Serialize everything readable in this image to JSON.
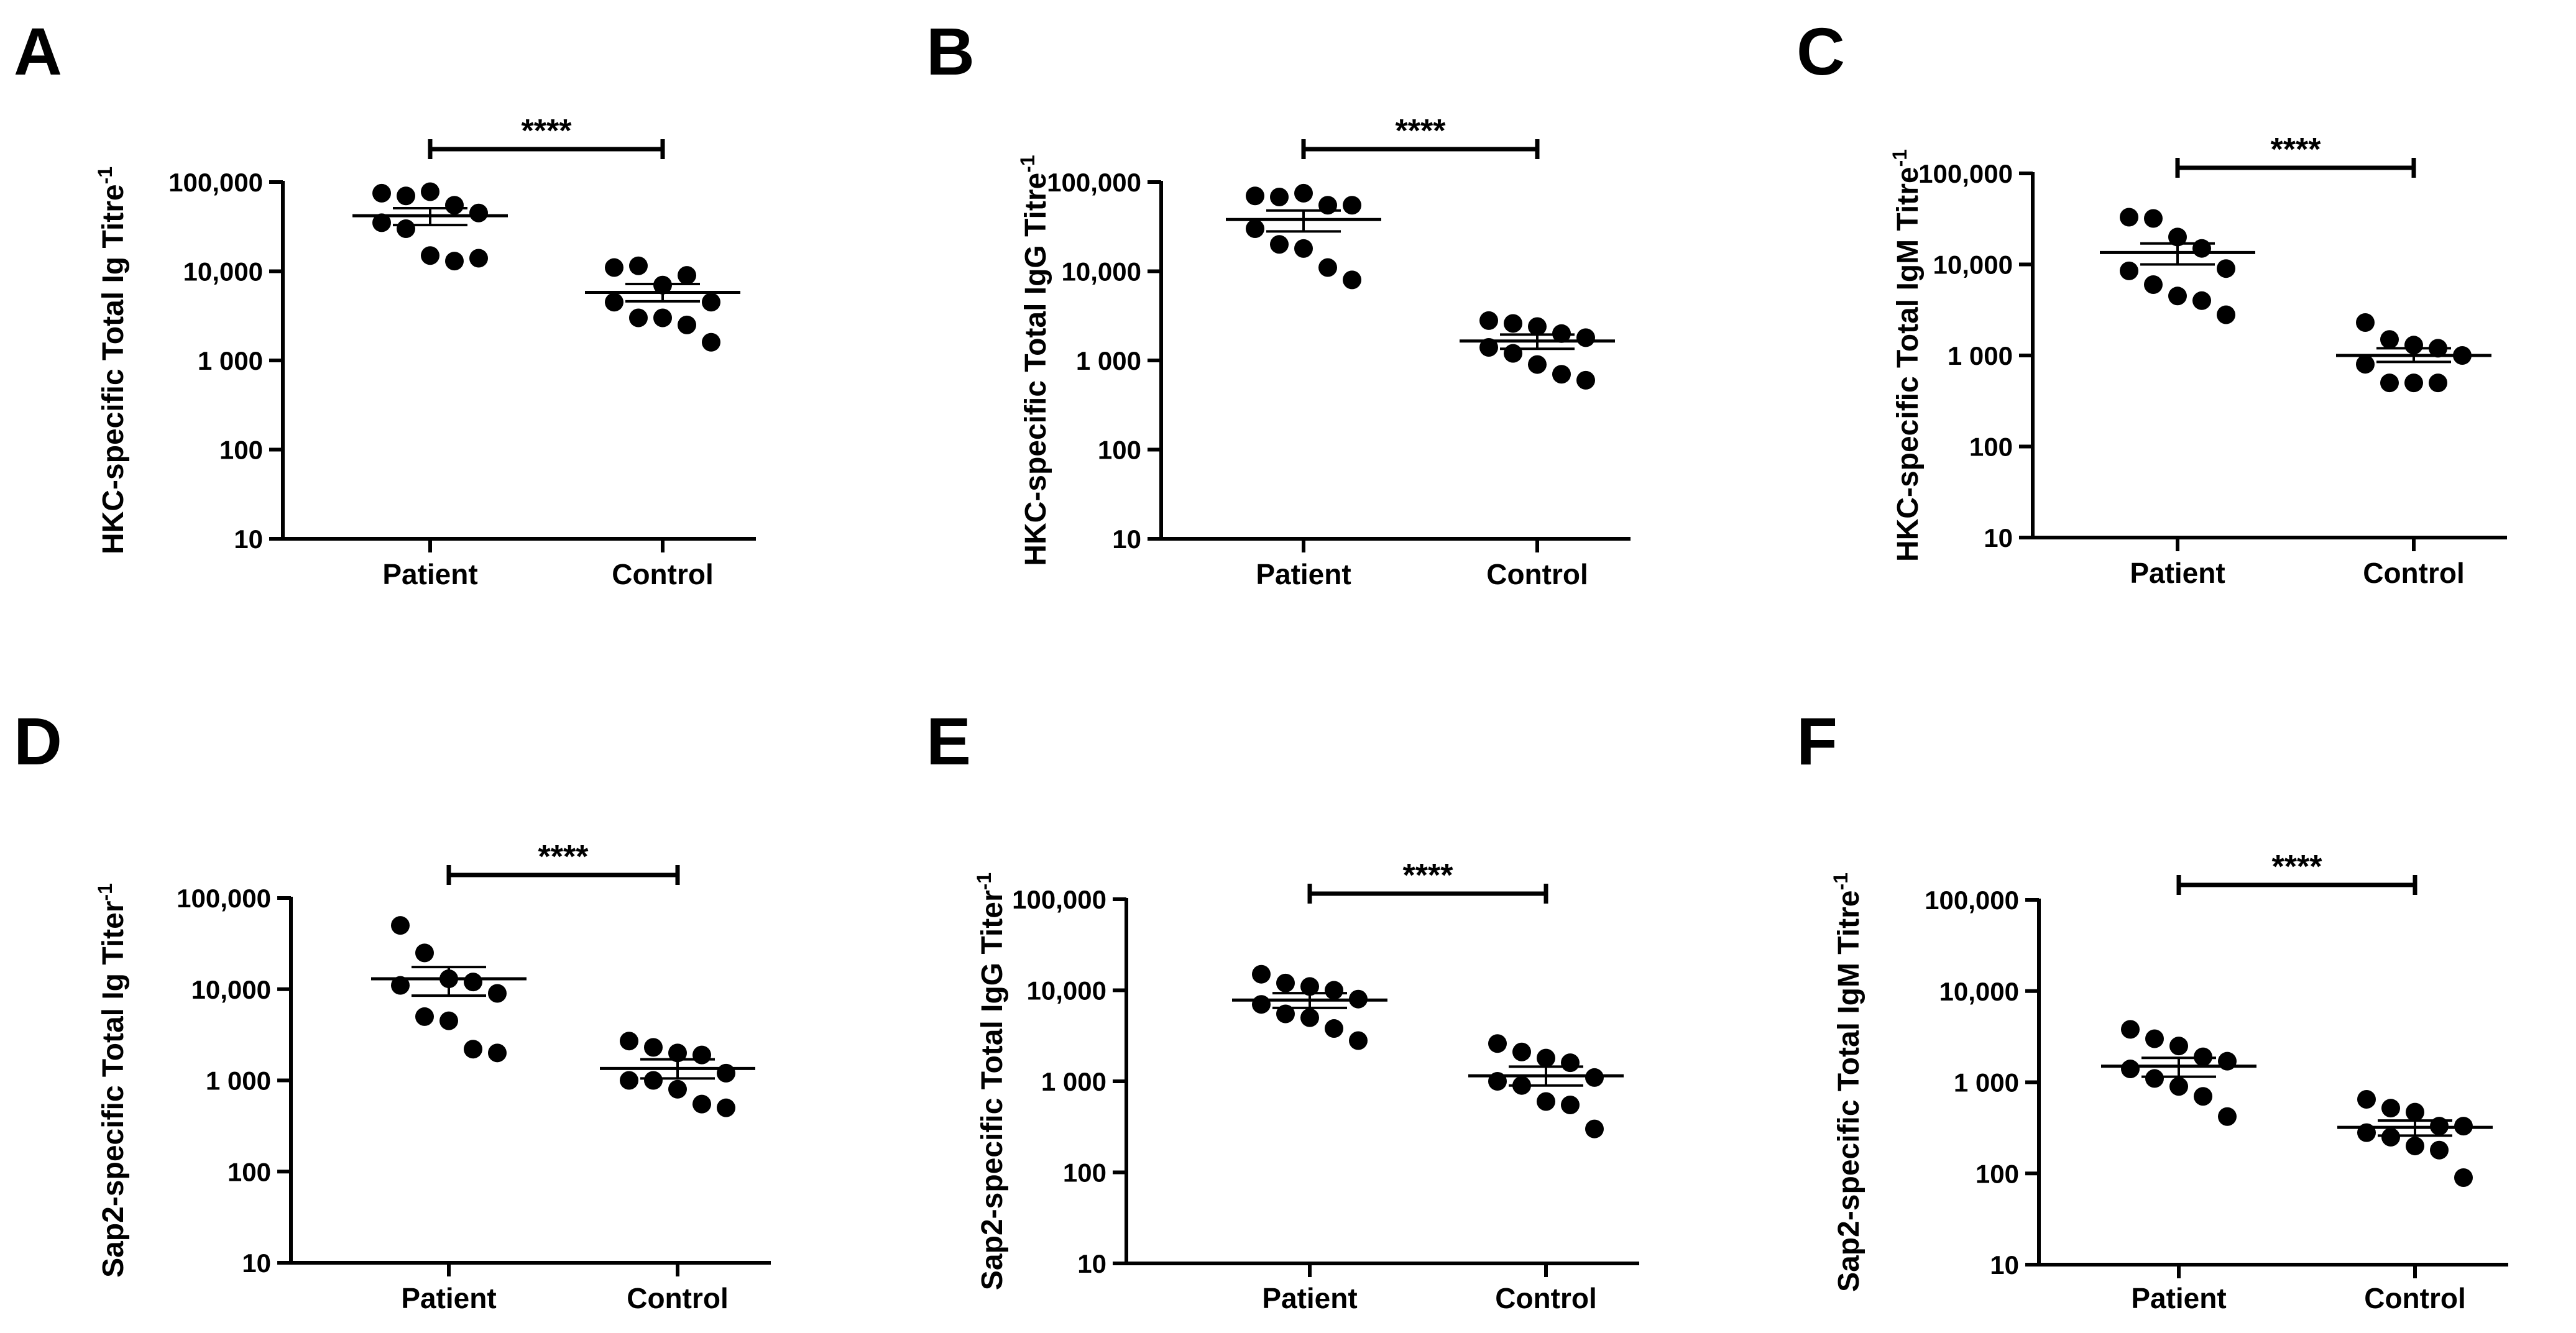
{
  "chart_data": [
    {
      "panel": "A",
      "type": "scatter",
      "ylabel": "HKC-specific Total Ig Titre",
      "ylabel_sup": "-1",
      "scale": "log",
      "ylim": [
        10,
        100000
      ],
      "yticks": [
        10,
        100,
        1000,
        10000,
        100000
      ],
      "ytick_labels": [
        "10",
        "100",
        "1 000",
        "10,000",
        "100,000"
      ],
      "categories": [
        "Patient",
        "Control"
      ],
      "series": [
        {
          "name": "Patient",
          "values": [
            75000,
            70000,
            78000,
            55000,
            45000,
            35000,
            30000,
            15000,
            13000,
            14000
          ],
          "mean": 42000,
          "sem_low": 33000,
          "sem_high": 51000
        },
        {
          "name": "Control",
          "values": [
            11000,
            11500,
            7000,
            9000,
            4500,
            4500,
            3000,
            3000,
            2500,
            1600
          ],
          "mean": 5800,
          "sem_low": 4600,
          "sem_high": 7200
        }
      ],
      "significance": "****"
    },
    {
      "panel": "B",
      "type": "scatter",
      "ylabel": "HKC-specific Total IgG Titre",
      "ylabel_sup": "-1",
      "scale": "log",
      "ylim": [
        10,
        100000
      ],
      "yticks": [
        10,
        100,
        1000,
        10000,
        100000
      ],
      "ytick_labels": [
        "10",
        "100",
        "1 000",
        "10,000",
        "100,000"
      ],
      "categories": [
        "Patient",
        "Control"
      ],
      "series": [
        {
          "name": "Patient",
          "values": [
            70000,
            68000,
            75000,
            55000,
            55000,
            30000,
            20000,
            18000,
            11000,
            8000
          ],
          "mean": 38000,
          "sem_low": 28000,
          "sem_high": 48000
        },
        {
          "name": "Control",
          "values": [
            2800,
            2600,
            2400,
            2000,
            1800,
            1400,
            1200,
            900,
            700,
            600
          ],
          "mean": 1650,
          "sem_low": 1350,
          "sem_high": 1950
        }
      ],
      "significance": "****"
    },
    {
      "panel": "C",
      "type": "scatter",
      "ylabel": "HKC-specific Total IgM Titre",
      "ylabel_sup": "-1",
      "scale": "log",
      "ylim": [
        10,
        100000
      ],
      "yticks": [
        10,
        100,
        1000,
        10000,
        100000
      ],
      "ytick_labels": [
        "10",
        "100",
        "1 000",
        "10,000",
        "100,000"
      ],
      "categories": [
        "Patient",
        "Control"
      ],
      "series": [
        {
          "name": "Patient",
          "values": [
            33000,
            32000,
            20000,
            15000,
            9000,
            8500,
            6000,
            4500,
            4000,
            2800
          ],
          "mean": 13500,
          "sem_low": 10000,
          "sem_high": 17000
        },
        {
          "name": "Control",
          "values": [
            2300,
            1500,
            1300,
            1200,
            1000,
            800,
            500,
            500,
            500
          ],
          "mean": 1000,
          "sem_low": 850,
          "sem_high": 1200
        }
      ],
      "significance": "****"
    },
    {
      "panel": "D",
      "type": "scatter",
      "ylabel": "Sap2-specific Total Ig Titer",
      "ylabel_sup": "-1",
      "scale": "log",
      "ylim": [
        10,
        100000
      ],
      "yticks": [
        10,
        100,
        1000,
        10000,
        100000
      ],
      "ytick_labels": [
        "10",
        "100",
        "1 000",
        "10,000",
        "100,000"
      ],
      "categories": [
        "Patient",
        "Control"
      ],
      "series": [
        {
          "name": "Patient",
          "values": [
            50000,
            25000,
            13000,
            12000,
            9000,
            11000,
            5000,
            4500,
            2200,
            2000
          ],
          "mean": 13000,
          "sem_low": 8500,
          "sem_high": 17500
        },
        {
          "name": "Control",
          "values": [
            2700,
            2300,
            2000,
            1900,
            1200,
            1000,
            1000,
            800,
            550,
            500
          ],
          "mean": 1350,
          "sem_low": 1050,
          "sem_high": 1700
        }
      ],
      "significance": "****"
    },
    {
      "panel": "E",
      "type": "scatter",
      "ylabel": "Sap2-specific Total IgG Titer",
      "ylabel_sup": "-1",
      "scale": "log",
      "ylim": [
        10,
        100000
      ],
      "yticks": [
        10,
        100,
        1000,
        10000,
        100000
      ],
      "ytick_labels": [
        "10",
        "100",
        "1 000",
        "10,000",
        "100,000"
      ],
      "categories": [
        "Patient",
        "Control"
      ],
      "series": [
        {
          "name": "Patient",
          "values": [
            15000,
            12000,
            11000,
            10000,
            8000,
            7000,
            5500,
            5000,
            3800,
            2800
          ],
          "mean": 7800,
          "sem_low": 6400,
          "sem_high": 9300
        },
        {
          "name": "Control",
          "values": [
            2600,
            2100,
            1800,
            1600,
            1100,
            1000,
            900,
            600,
            550,
            300
          ],
          "mean": 1150,
          "sem_low": 900,
          "sem_high": 1450
        }
      ],
      "significance": "****"
    },
    {
      "panel": "F",
      "type": "scatter",
      "ylabel": "Sap2-specific Total IgM Titre",
      "ylabel_sup": "-1",
      "scale": "log",
      "ylim": [
        10,
        100000
      ],
      "yticks": [
        10,
        100,
        1000,
        10000,
        100000
      ],
      "ytick_labels": [
        "10",
        "100",
        "1 000",
        "10,000",
        "100,000"
      ],
      "categories": [
        "Patient",
        "Control"
      ],
      "series": [
        {
          "name": "Patient",
          "values": [
            3800,
            3000,
            2500,
            1900,
            1700,
            1400,
            1100,
            900,
            700,
            420
          ],
          "mean": 1500,
          "sem_low": 1150,
          "sem_high": 1850
        },
        {
          "name": "Control",
          "values": [
            650,
            520,
            470,
            330,
            330,
            280,
            250,
            200,
            180,
            90
          ],
          "mean": 320,
          "sem_low": 260,
          "sem_high": 380
        }
      ],
      "significance": "****"
    }
  ]
}
